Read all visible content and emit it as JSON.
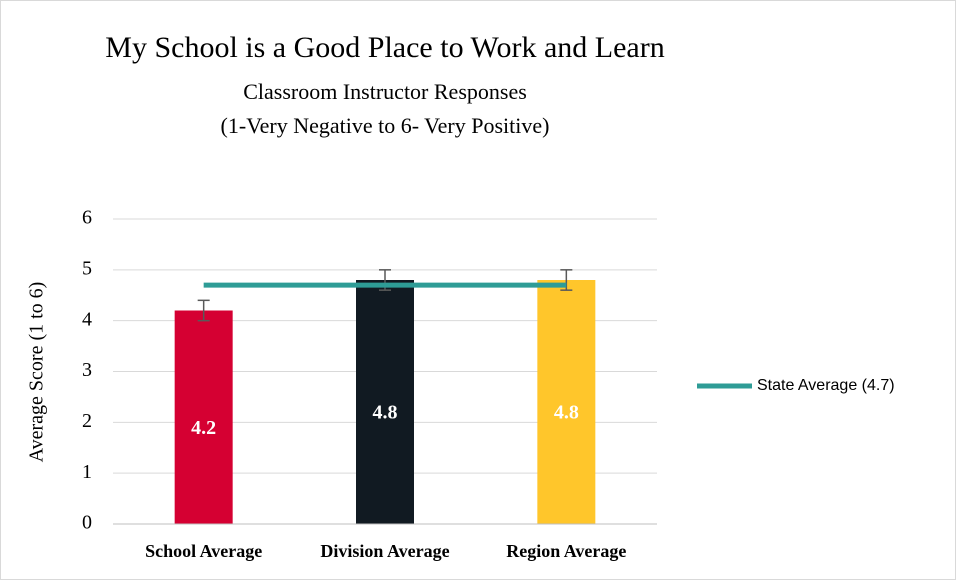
{
  "chart_data": {
    "type": "bar",
    "title": "My School is a Good Place to Work and Learn",
    "subtitle": [
      "Classroom Instructor Responses",
      "(1-Very Negative to 6- Very Positive)"
    ],
    "y_label": "Average Score (1 to 6)",
    "categories": [
      "School Average",
      "Division Average",
      "Region Average"
    ],
    "values": [
      4.2,
      4.8,
      4.8
    ],
    "errors": [
      0.2,
      0.2,
      0.2
    ],
    "colors": [
      "#d50032",
      "#111a22",
      "#ffc62b"
    ],
    "lines": [
      {
        "name": "State Average (4.7)",
        "color": "#2e9c96",
        "values": [
          4.7,
          4.7,
          4.7
        ]
      }
    ],
    "ylim": [
      0,
      6
    ],
    "yticks": [
      0,
      1,
      2,
      3,
      4,
      5,
      6
    ],
    "grid": true,
    "legend": "right"
  }
}
